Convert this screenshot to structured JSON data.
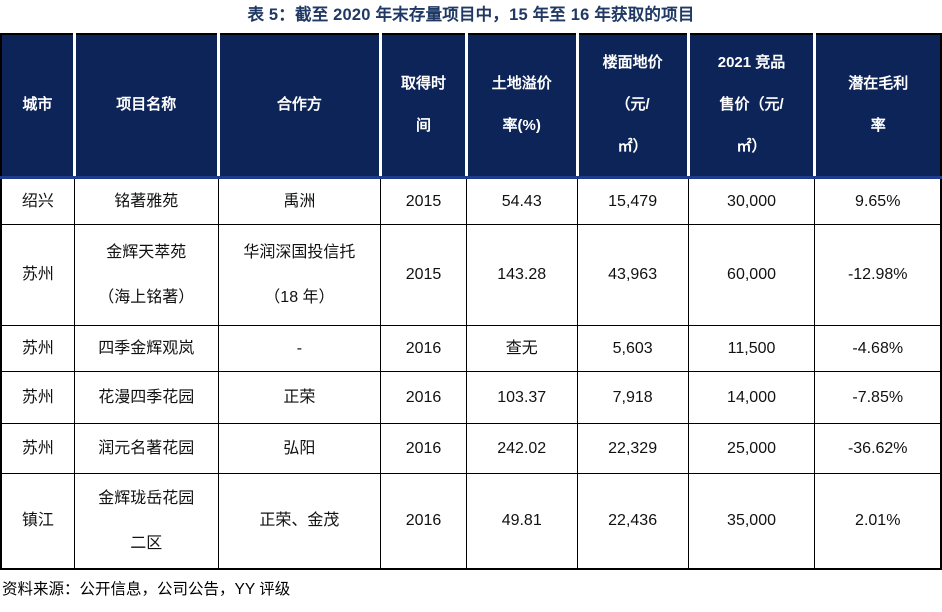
{
  "title": "表 5：截至 2020 年末存量项目中，15 年至 16 年获取的项目",
  "source_note": "资料来源：公开信息，公司公告，YY 评级",
  "colors": {
    "header_background": "#0d2458",
    "header_text": "#ffffff",
    "title_text": "#1f3864",
    "header_accent_border": "#1f3c8c",
    "body_border": "#000000"
  },
  "table": {
    "columns": [
      {
        "key": "city",
        "label": "城市"
      },
      {
        "key": "project-name",
        "label": "项目名称"
      },
      {
        "key": "partner",
        "label": "合作方"
      },
      {
        "key": "acquired-year",
        "label": "取得时\n间"
      },
      {
        "key": "land-premium",
        "label": "土地溢价\n率(%)"
      },
      {
        "key": "floor-price",
        "label": "楼面地价\n（元/\n㎡）"
      },
      {
        "key": "competitor-price-2021",
        "label": "2021 竞品\n售价（元/\n㎡）"
      },
      {
        "key": "potential-margin",
        "label": "潜在毛利\n率"
      }
    ],
    "rows": [
      [
        "绍兴",
        "铭著雅苑",
        "禹洲",
        "2015",
        "54.43",
        "15,479",
        "30,000",
        "9.65%"
      ],
      [
        "苏州",
        "金辉天萃苑\n（海上铭著）",
        "华润深国投信托\n（18 年）",
        "2015",
        "143.28",
        "43,963",
        "60,000",
        "-12.98%"
      ],
      [
        "苏州",
        "四季金辉观岚",
        "-",
        "2016",
        "查无",
        "5,603",
        "11,500",
        "-4.68%"
      ],
      [
        "苏州",
        "花漫四季花园",
        "正荣",
        "2016",
        "103.37",
        "7,918",
        "14,000",
        "-7.85%"
      ],
      [
        "苏州",
        "润元名著花园",
        "弘阳",
        "2016",
        "242.02",
        "22,329",
        "25,000",
        "-36.62%"
      ],
      [
        "镇江",
        "金辉珑岳花园\n二区",
        "正荣、金茂",
        "2016",
        "49.81",
        "22,436",
        "35,000",
        "2.01%"
      ]
    ]
  }
}
